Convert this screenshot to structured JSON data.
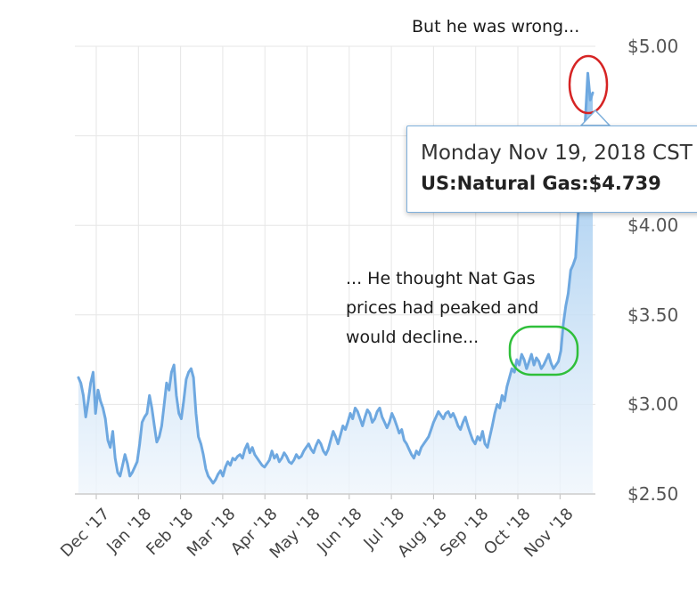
{
  "chart_data": {
    "type": "area",
    "title": "",
    "xlabel": "",
    "ylabel": "",
    "grid": true,
    "ylim": [
      2.5,
      5.0
    ],
    "y_ticks": [
      "$2.50",
      "$3.00",
      "$3.50",
      "$4.00",
      "$4.50",
      "$5.00"
    ],
    "x_ticks": [
      "Dec '17",
      "Jan '18",
      "Feb '18",
      "Mar '18",
      "Apr '18",
      "May '18",
      "Jun '18",
      "Jul '18",
      "Aug '18",
      "Sep '18",
      "Oct '18",
      "Nov '18"
    ],
    "series": [
      {
        "name": "US:Natural Gas",
        "color": "#6ea8e0",
        "values": [
          3.15,
          3.12,
          3.05,
          2.93,
          3.02,
          3.12,
          3.18,
          2.95,
          3.08,
          3.02,
          2.98,
          2.92,
          2.8,
          2.76,
          2.85,
          2.7,
          2.62,
          2.6,
          2.66,
          2.72,
          2.67,
          2.6,
          2.62,
          2.65,
          2.68,
          2.78,
          2.9,
          2.93,
          2.95,
          3.05,
          2.98,
          2.88,
          2.79,
          2.82,
          2.88,
          3.0,
          3.12,
          3.08,
          3.18,
          3.22,
          3.05,
          2.95,
          2.92,
          3.02,
          3.14,
          3.18,
          3.2,
          3.15,
          2.95,
          2.82,
          2.78,
          2.72,
          2.64,
          2.6,
          2.58,
          2.56,
          2.58,
          2.61,
          2.63,
          2.6,
          2.65,
          2.68,
          2.66,
          2.7,
          2.69,
          2.71,
          2.72,
          2.7,
          2.75,
          2.78,
          2.73,
          2.76,
          2.72,
          2.7,
          2.68,
          2.66,
          2.65,
          2.67,
          2.69,
          2.74,
          2.7,
          2.72,
          2.68,
          2.7,
          2.73,
          2.71,
          2.68,
          2.67,
          2.69,
          2.72,
          2.7,
          2.71,
          2.74,
          2.76,
          2.78,
          2.75,
          2.73,
          2.77,
          2.8,
          2.78,
          2.74,
          2.72,
          2.75,
          2.8,
          2.85,
          2.82,
          2.78,
          2.83,
          2.88,
          2.86,
          2.9,
          2.95,
          2.92,
          2.98,
          2.96,
          2.92,
          2.88,
          2.93,
          2.97,
          2.95,
          2.9,
          2.92,
          2.96,
          2.98,
          2.93,
          2.9,
          2.87,
          2.9,
          2.95,
          2.92,
          2.88,
          2.84,
          2.86,
          2.8,
          2.78,
          2.75,
          2.72,
          2.7,
          2.74,
          2.72,
          2.76,
          2.78,
          2.8,
          2.82,
          2.86,
          2.9,
          2.93,
          2.96,
          2.94,
          2.92,
          2.95,
          2.96,
          2.93,
          2.95,
          2.92,
          2.88,
          2.86,
          2.9,
          2.93,
          2.88,
          2.84,
          2.8,
          2.78,
          2.82,
          2.8,
          2.85,
          2.78,
          2.76,
          2.82,
          2.88,
          2.95,
          3.0,
          2.98,
          3.05,
          3.02,
          3.1,
          3.15,
          3.2,
          3.18,
          3.25,
          3.22,
          3.28,
          3.25,
          3.2,
          3.24,
          3.28,
          3.22,
          3.26,
          3.24,
          3.2,
          3.22,
          3.25,
          3.28,
          3.23,
          3.2,
          3.22,
          3.24,
          3.3,
          3.45,
          3.55,
          3.62,
          3.75,
          3.78,
          3.82,
          4.05,
          4.25,
          4.4,
          4.6,
          4.85,
          4.7,
          4.74
        ]
      }
    ]
  },
  "tooltip": {
    "date": "Monday Nov 19, 2018 CST",
    "value": "US:Natural Gas:$4.739"
  },
  "annotations": {
    "top_note": "But he was wrong...",
    "middle_note_lines": [
      "... He thought Nat Gas",
      "prices had peaked and",
      "would decline..."
    ]
  },
  "colors": {
    "line": "#6ea8e0",
    "area_top": "#8fc0ec",
    "area_bottom": "#eef5fc",
    "grid": "#e6e6e6",
    "red_circle": "#d62424",
    "green_circle": "#2fbf3a",
    "tooltip_border": "#7eb0dc"
  }
}
